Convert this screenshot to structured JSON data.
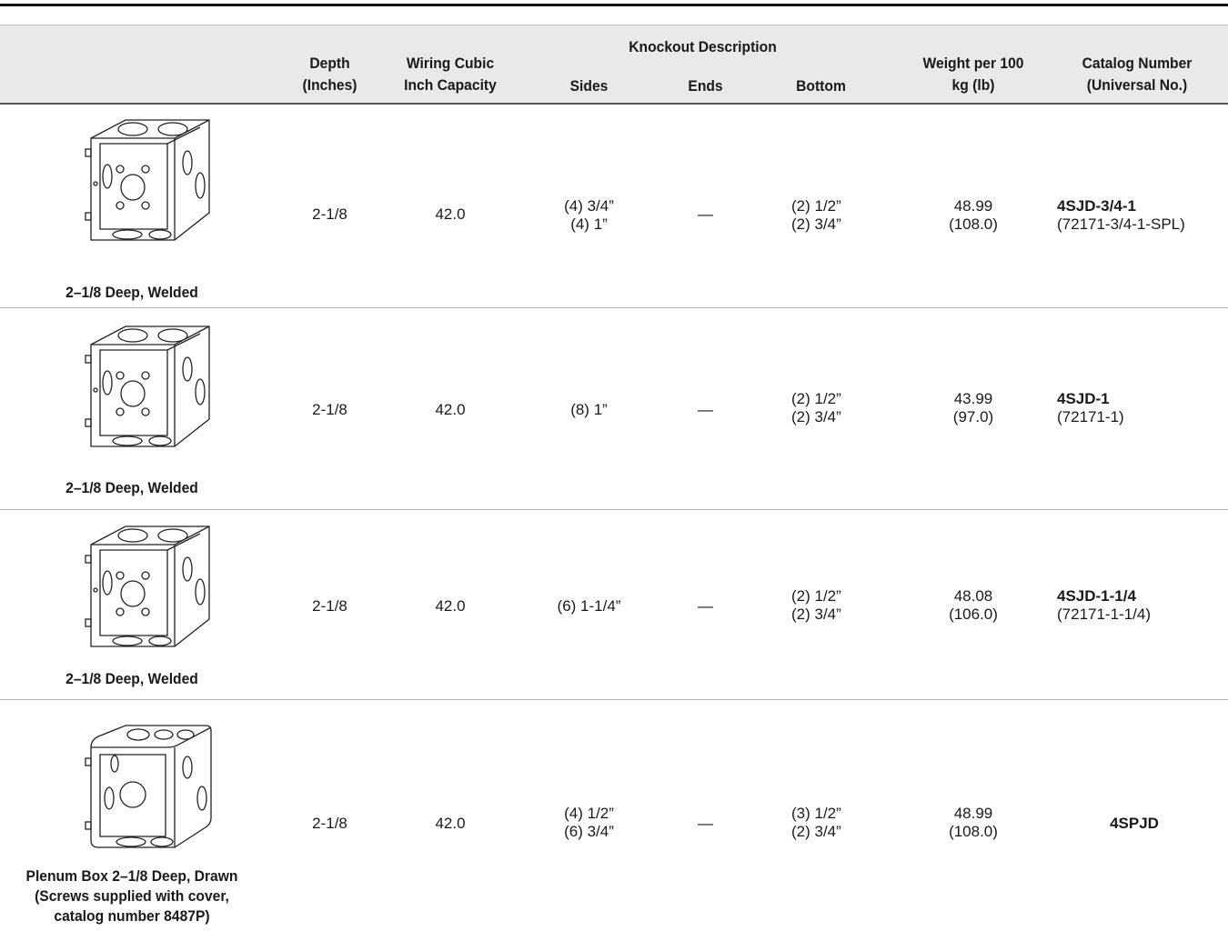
{
  "headers": {
    "depth": [
      "Depth",
      "(Inches)"
    ],
    "capacity": [
      "Wiring Cubic",
      "Inch Capacity"
    ],
    "knockout_group": "Knockout Description",
    "sides": "Sides",
    "ends": "Ends",
    "bottom": "Bottom",
    "weight": [
      "Weight per 100",
      "kg (lb)"
    ],
    "catalog": [
      "Catalog Number",
      "(Universal No.)"
    ]
  },
  "rows": [
    {
      "image_icon": "welded-square-box-icon",
      "caption": [
        "2–1/8 Deep, Welded"
      ],
      "depth": "2-1/8",
      "capacity": "42.0",
      "sides": [
        "(4) 3/4”",
        "(4) 1”"
      ],
      "ends": "—",
      "bottom": [
        "(2) 1/2”",
        "(2) 3/4”"
      ],
      "weight": [
        "48.99",
        "(108.0)"
      ],
      "catalog": "4SJD-3/4-1",
      "universal": "(72171-3/4-1-SPL)"
    },
    {
      "image_icon": "welded-square-box-icon",
      "caption": [
        "2–1/8 Deep, Welded"
      ],
      "depth": "2-1/8",
      "capacity": "42.0",
      "sides": [
        "(8) 1”"
      ],
      "ends": "—",
      "bottom": [
        "(2) 1/2”",
        "(2) 3/4”"
      ],
      "weight": [
        "43.99",
        "(97.0)"
      ],
      "catalog": "4SJD-1",
      "universal": "(72171-1)"
    },
    {
      "image_icon": "welded-square-box-icon",
      "caption": [
        "2–1/8 Deep, Welded"
      ],
      "depth": "2-1/8",
      "capacity": "42.0",
      "sides": [
        "(6) 1-1/4”"
      ],
      "ends": "—",
      "bottom": [
        "(2) 1/2”",
        "(2) 3/4”"
      ],
      "weight": [
        "48.08",
        "(106.0)"
      ],
      "catalog": "4SJD-1-1/4",
      "universal": "(72171-1-1/4)"
    },
    {
      "image_icon": "drawn-plenum-box-icon",
      "caption": [
        "Plenum Box 2–1/8 Deep, Drawn",
        "(Screws supplied with cover,",
        "catalog number 8487P)"
      ],
      "depth": "2-1/8",
      "capacity": "42.0",
      "sides": [
        "(4) 1/2”",
        "(6) 3/4”"
      ],
      "ends": "—",
      "bottom": [
        "(3) 1/2”",
        "(2) 3/4”"
      ],
      "weight": [
        "48.99",
        "(108.0)"
      ],
      "catalog": "4SPJD",
      "universal": ""
    }
  ]
}
